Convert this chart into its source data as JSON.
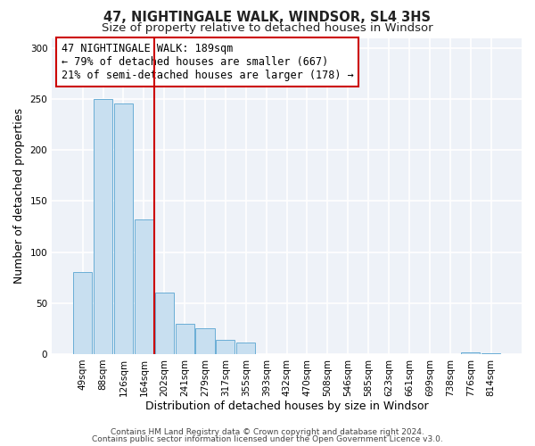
{
  "title": "47, NIGHTINGALE WALK, WINDSOR, SL4 3HS",
  "subtitle": "Size of property relative to detached houses in Windsor",
  "xlabel": "Distribution of detached houses by size in Windsor",
  "ylabel": "Number of detached properties",
  "bar_labels": [
    "49sqm",
    "88sqm",
    "126sqm",
    "164sqm",
    "202sqm",
    "241sqm",
    "279sqm",
    "317sqm",
    "355sqm",
    "393sqm",
    "432sqm",
    "470sqm",
    "508sqm",
    "546sqm",
    "585sqm",
    "623sqm",
    "661sqm",
    "699sqm",
    "738sqm",
    "776sqm",
    "814sqm"
  ],
  "bar_values": [
    80,
    250,
    246,
    132,
    60,
    30,
    25,
    14,
    11,
    0,
    0,
    0,
    0,
    0,
    0,
    0,
    0,
    0,
    0,
    2,
    1
  ],
  "bar_color": "#c8dff0",
  "bar_edge_color": "#6aaed6",
  "vertical_line_color": "#cc0000",
  "annotation_text": "47 NIGHTINGALE WALK: 189sqm\n← 79% of detached houses are smaller (667)\n21% of semi-detached houses are larger (178) →",
  "annotation_box_facecolor": "white",
  "annotation_box_edgecolor": "#cc0000",
  "ylim": [
    0,
    310
  ],
  "yticks": [
    0,
    50,
    100,
    150,
    200,
    250,
    300
  ],
  "footer_line1": "Contains HM Land Registry data © Crown copyright and database right 2024.",
  "footer_line2": "Contains public sector information licensed under the Open Government Licence v3.0.",
  "bg_color": "#ffffff",
  "plot_bg_color": "#eef2f8",
  "grid_color": "#ffffff",
  "title_fontsize": 10.5,
  "subtitle_fontsize": 9.5,
  "axis_label_fontsize": 9,
  "tick_fontsize": 7.5,
  "annotation_fontsize": 8.5,
  "footer_fontsize": 6.5
}
